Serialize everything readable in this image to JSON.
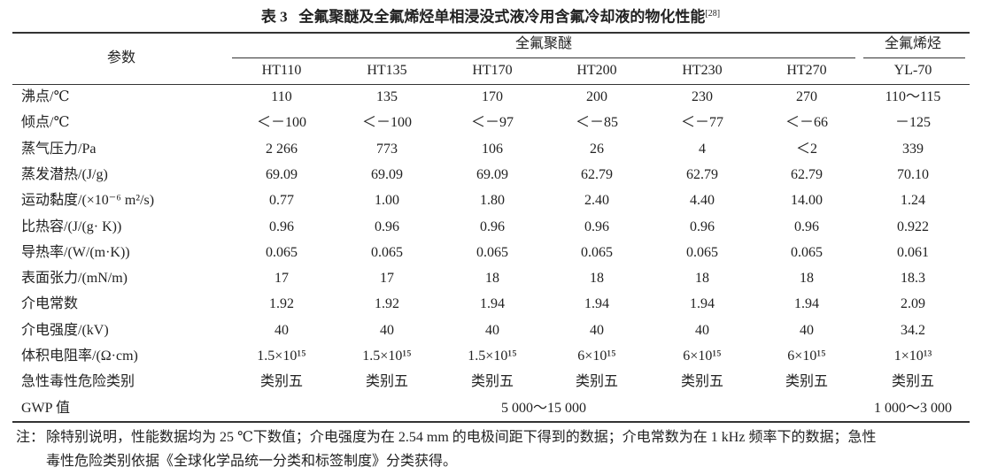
{
  "title": {
    "label": "表 3",
    "text": "全氟聚醚及全氟烯烃单相浸没式液冷用含氟冷却液的物化性能",
    "ref": "[28]"
  },
  "table": {
    "param_header": "参数",
    "groups": [
      "全氟聚醚",
      "全氟烯烃"
    ],
    "columns": [
      "HT110",
      "HT135",
      "HT170",
      "HT200",
      "HT230",
      "HT270",
      "YL-70"
    ],
    "rows": [
      [
        "沸点/℃",
        "110",
        "135",
        "170",
        "200",
        "230",
        "270",
        "110～115"
      ],
      [
        "倾点/℃",
        "＜－100",
        "＜－100",
        "＜－97",
        "＜－85",
        "＜－77",
        "＜－66",
        "－125"
      ],
      [
        "蒸气压力/Pa",
        "2 266",
        "773",
        "106",
        "26",
        "4",
        "＜2",
        "339"
      ],
      [
        "蒸发潜热/(J/g)",
        "69.09",
        "69.09",
        "69.09",
        "62.79",
        "62.79",
        "62.79",
        "70.10"
      ],
      [
        "运动黏度/(×10⁻⁶ m²/s)",
        "0.77",
        "1.00",
        "1.80",
        "2.40",
        "4.40",
        "14.00",
        "1.24"
      ],
      [
        "比热容/(J/(g· K))",
        "0.96",
        "0.96",
        "0.96",
        "0.96",
        "0.96",
        "0.96",
        "0.922"
      ],
      [
        "导热率/(W/(m·K))",
        "0.065",
        "0.065",
        "0.065",
        "0.065",
        "0.065",
        "0.065",
        "0.061"
      ],
      [
        "表面张力/(mN/m)",
        "17",
        "17",
        "18",
        "18",
        "18",
        "18",
        "18.3"
      ],
      [
        "介电常数",
        "1.92",
        "1.92",
        "1.94",
        "1.94",
        "1.94",
        "1.94",
        "2.09"
      ],
      [
        "介电强度/(kV)",
        "40",
        "40",
        "40",
        "40",
        "40",
        "40",
        "34.2"
      ],
      [
        "体积电阻率/(Ω·cm)",
        "1.5×10¹⁵",
        "1.5×10¹⁵",
        "1.5×10¹⁵",
        "6×10¹⁵",
        "6×10¹⁵",
        "6×10¹⁵",
        "1×10¹³"
      ],
      [
        "急性毒性危险类别",
        "类别五",
        "类别五",
        "类别五",
        "类别五",
        "类别五",
        "类别五",
        "类别五"
      ]
    ],
    "gwp": {
      "label": "GWP 值",
      "pfpe": "5 000～15 000",
      "pfo": "1 000～3 000"
    }
  },
  "note": {
    "label": "注：",
    "lines": [
      "除特别说明，性能数据均为 25 ℃下数值；介电强度为在 2.54 mm 的电极间距下得到的数据；介电常数为在 1 kHz 频率下的数据；急性",
      "毒性危险类别依据《全球化学品统一分类和标签制度》分类获得。"
    ]
  }
}
